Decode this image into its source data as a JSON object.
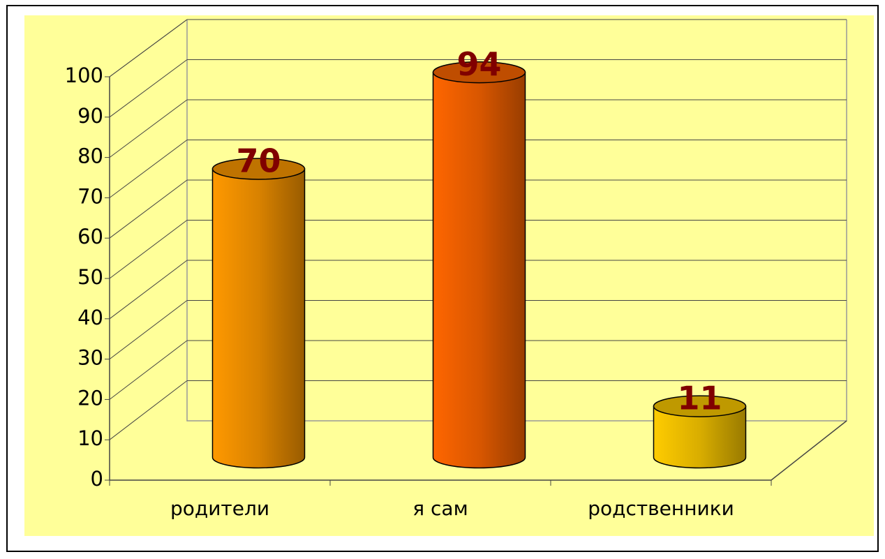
{
  "chart_data": {
    "type": "bar",
    "categories": [
      "родители",
      "я сам",
      "родственники"
    ],
    "values": [
      70,
      94,
      11
    ],
    "colors": [
      "#ff9900",
      "#ff6600",
      "#ffcc00"
    ],
    "ylim": [
      0,
      100
    ],
    "yticks": [
      0,
      10,
      20,
      30,
      40,
      50,
      60,
      70,
      80,
      90,
      100
    ],
    "grid": true
  }
}
